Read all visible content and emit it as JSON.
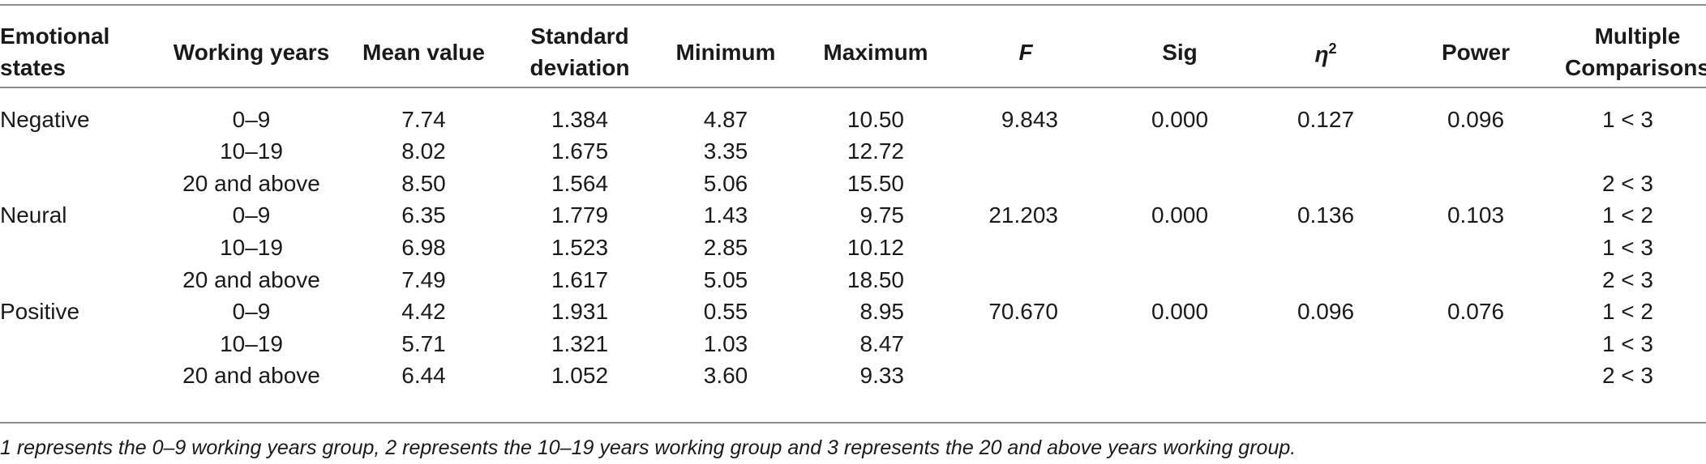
{
  "table": {
    "headers": {
      "emotional_states": [
        "Emotional",
        "states"
      ],
      "working_years": "Working years",
      "mean_value": "Mean value",
      "standard_deviation": [
        "Standard",
        "deviation"
      ],
      "minimum": "Minimum",
      "maximum": "Maximum",
      "f": "F",
      "sig": "Sig",
      "eta_base": "η",
      "eta_sup": "2",
      "power": "Power",
      "multiple_comparisons": [
        "Multiple",
        "Comparisons"
      ]
    },
    "rows": [
      {
        "state": "Negative",
        "years": "0–9",
        "mean": "7.74",
        "sd": "1.384",
        "min": "4.87",
        "max": "10.50",
        "f": "9.843",
        "sig": "0.000",
        "eta": "0.127",
        "power": "0.096",
        "mc": "1 < 3"
      },
      {
        "state": "",
        "years": "10–19",
        "mean": "8.02",
        "sd": "1.675",
        "min": "3.35",
        "max": "12.72",
        "f": "",
        "sig": "",
        "eta": "",
        "power": "",
        "mc": ""
      },
      {
        "state": "",
        "years": "20 and above",
        "mean": "8.50",
        "sd": "1.564",
        "min": "5.06",
        "max": "15.50",
        "f": "",
        "sig": "",
        "eta": "",
        "power": "",
        "mc": "2 < 3"
      },
      {
        "state": "Neural",
        "years": "0–9",
        "mean": "6.35",
        "sd": "1.779",
        "min": "1.43",
        "max": "9.75",
        "f": "21.203",
        "sig": "0.000",
        "eta": "0.136",
        "power": "0.103",
        "mc": "1 < 2"
      },
      {
        "state": "",
        "years": "10–19",
        "mean": "6.98",
        "sd": "1.523",
        "min": "2.85",
        "max": "10.12",
        "f": "",
        "sig": "",
        "eta": "",
        "power": "",
        "mc": "1 < 3"
      },
      {
        "state": "",
        "years": "20 and above",
        "mean": "7.49",
        "sd": "1.617",
        "min": "5.05",
        "max": "18.50",
        "f": "",
        "sig": "",
        "eta": "",
        "power": "",
        "mc": "2 < 3"
      },
      {
        "state": "Positive",
        "years": "0–9",
        "mean": "4.42",
        "sd": "1.931",
        "min": "0.55",
        "max": "8.95",
        "f": "70.670",
        "sig": "0.000",
        "eta": "0.096",
        "power": "0.076",
        "mc": "1 < 2"
      },
      {
        "state": "",
        "years": "10–19",
        "mean": "5.71",
        "sd": "1.321",
        "min": "1.03",
        "max": "8.47",
        "f": "",
        "sig": "",
        "eta": "",
        "power": "",
        "mc": "1 < 3"
      },
      {
        "state": "",
        "years": "20 and above",
        "mean": "6.44",
        "sd": "1.052",
        "min": "3.60",
        "max": "9.33",
        "f": "",
        "sig": "",
        "eta": "",
        "power": "",
        "mc": "2 < 3"
      }
    ],
    "footnote": "1 represents the 0–9 working years group, 2 represents the 10–19 years working group and 3 represents the 20 and above years working group."
  }
}
